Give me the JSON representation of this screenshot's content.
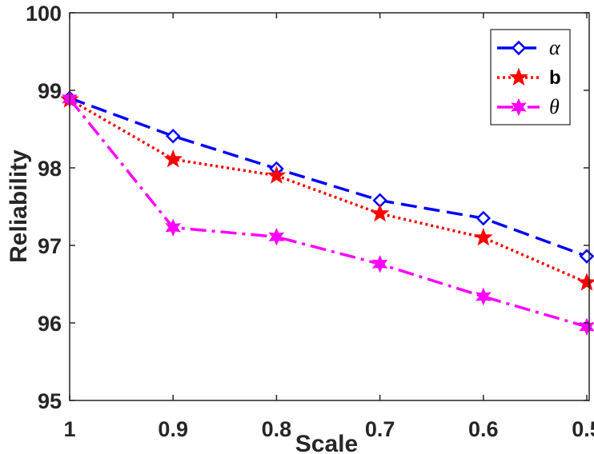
{
  "chart_data": {
    "type": "line",
    "title": "",
    "xlabel": "Scale",
    "ylabel": "Reliability",
    "categories": [
      "1",
      "0.9",
      "0.8",
      "0.7",
      "0.6",
      "0.5"
    ],
    "ylim": [
      95,
      100
    ],
    "yticks": [
      "95",
      "96",
      "97",
      "98",
      "99",
      "100"
    ],
    "grid": false,
    "legend_position": "top-right",
    "series": [
      {
        "name": "α",
        "color": "#0000ff",
        "line_style": "dashed",
        "marker": "diamond",
        "values": [
          98.9,
          98.41,
          97.99,
          97.58,
          97.35,
          96.86
        ]
      },
      {
        "name": "b",
        "color": "#ff0000",
        "line_style": "dotted",
        "marker": "star",
        "values": [
          98.88,
          98.11,
          97.9,
          97.41,
          97.1,
          96.52
        ]
      },
      {
        "name": "θ",
        "color": "#ff00ff",
        "line_style": "dashdot",
        "marker": "hexagram",
        "values": [
          98.89,
          97.23,
          97.11,
          96.76,
          96.34,
          95.95
        ]
      }
    ]
  }
}
